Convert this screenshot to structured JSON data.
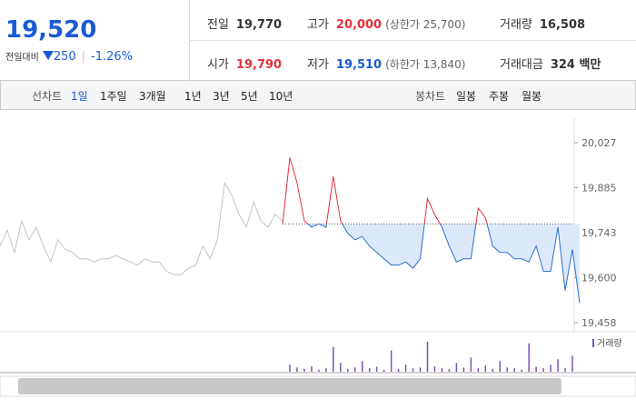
{
  "summary": {
    "price": "19,520",
    "change_label": "전일대비",
    "change": "250",
    "change_pct": "-1.26%"
  },
  "quotes": [
    {
      "label": "전일",
      "value": "19,770"
    },
    {
      "label": "고가",
      "value": "20,000",
      "note": "(상한가 25,700)"
    },
    {
      "label": "거래량",
      "value": "16,508"
    },
    {
      "label": "시가",
      "value": "19,790"
    },
    {
      "label": "저가",
      "value": "19,510",
      "note": "(하한가 13,840)"
    },
    {
      "label": "거래대금",
      "value": "324 백만"
    }
  ],
  "line_tabs": {
    "label": "선차트",
    "items": [
      "1일",
      "1주일",
      "3개월",
      "1년",
      "3년",
      "5년",
      "10년"
    ]
  },
  "candle_tabs": {
    "label": "봉차트",
    "items": [
      "일봉",
      "주봉",
      "월봉"
    ]
  },
  "chart_data": {
    "type": "line",
    "ylim": [
      19458,
      20027
    ],
    "yticks": [
      {
        "value": 20027,
        "label": "20,027"
      },
      {
        "value": 19885,
        "label": "19,885"
      },
      {
        "value": 19743,
        "label": "19,743"
      },
      {
        "value": 19600,
        "label": "19,600"
      },
      {
        "value": 19458,
        "label": "19,458"
      }
    ],
    "baseline": 19770,
    "up_color": "#e8303a",
    "down_color": "#2a6fd0",
    "area_color": "#dce9fa",
    "series": [
      {
        "color": "#c4c4c4",
        "values": [
          19700,
          19750,
          19680,
          19780,
          19720,
          19760,
          19700,
          19650,
          19720,
          19690,
          19680,
          19660,
          19660,
          19650,
          19660,
          19660,
          19670,
          19660,
          19650,
          19640,
          19660,
          19650,
          19650,
          19620,
          19610,
          19610,
          19630,
          19640,
          19700,
          19660,
          19720,
          19900,
          19860,
          19800,
          19760,
          19840,
          19780,
          19760,
          19800,
          19780,
          null,
          null,
          null,
          null,
          null,
          null,
          null,
          null,
          null,
          null,
          null,
          null,
          null,
          null,
          null,
          null,
          null,
          null,
          null,
          null,
          null,
          null,
          null,
          null,
          null,
          null,
          null,
          null,
          null,
          null,
          null,
          null,
          null,
          null,
          null,
          null,
          null,
          null,
          null,
          null
        ]
      },
      {
        "color": "#2a6fd0",
        "values": [
          null,
          null,
          null,
          null,
          null,
          null,
          null,
          null,
          null,
          null,
          null,
          null,
          null,
          null,
          null,
          null,
          null,
          null,
          null,
          null,
          null,
          null,
          null,
          null,
          null,
          null,
          null,
          null,
          null,
          null,
          null,
          null,
          null,
          null,
          null,
          null,
          null,
          null,
          null,
          19770,
          19980,
          19900,
          19780,
          19760,
          19770,
          19760,
          19920,
          19780,
          19740,
          19720,
          19730,
          19700,
          19680,
          19660,
          19640,
          19640,
          19650,
          19630,
          19660,
          19850,
          19800,
          19760,
          19700,
          19650,
          19660,
          19660,
          19820,
          19790,
          19700,
          19680,
          19680,
          19660,
          19660,
          19650,
          19700,
          19620,
          19620,
          19760,
          19560,
          19690,
          19520
        ]
      }
    ],
    "volume": {
      "name": "거래량",
      "color": "#7b52b8",
      "vlim": [
        0,
        100
      ],
      "values": [
        null,
        null,
        null,
        null,
        null,
        null,
        null,
        null,
        null,
        null,
        null,
        null,
        null,
        null,
        null,
        null,
        null,
        null,
        null,
        null,
        null,
        null,
        null,
        null,
        null,
        null,
        null,
        null,
        null,
        null,
        null,
        null,
        null,
        null,
        null,
        null,
        null,
        null,
        null,
        null,
        20,
        12,
        8,
        15,
        6,
        10,
        70,
        25,
        8,
        12,
        30,
        10,
        14,
        6,
        60,
        8,
        20,
        10,
        12,
        85,
        15,
        10,
        8,
        25,
        12,
        40,
        10,
        18,
        8,
        30,
        12,
        10,
        6,
        80,
        14,
        10,
        20,
        35,
        10,
        45
      ]
    }
  }
}
